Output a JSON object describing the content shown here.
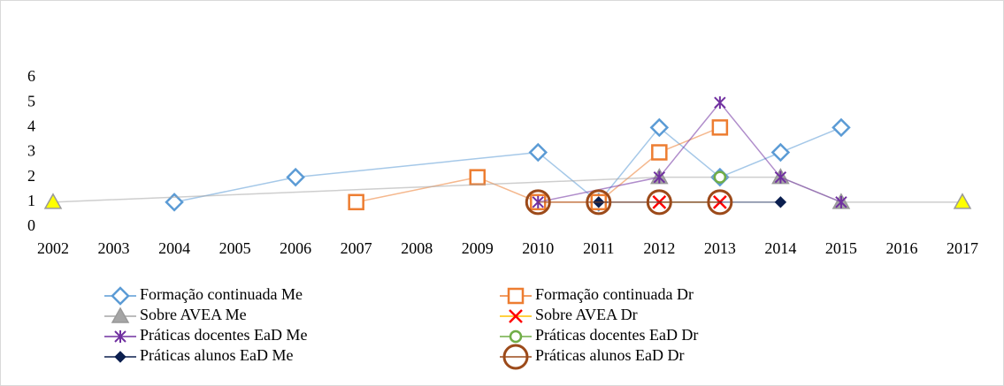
{
  "chart_data": {
    "type": "line",
    "xlim": [
      2002,
      2017
    ],
    "xticks": [
      2002,
      2003,
      2004,
      2005,
      2006,
      2007,
      2008,
      2009,
      2010,
      2011,
      2012,
      2013,
      2014,
      2015,
      2016,
      2017
    ],
    "ylim": [
      0,
      6
    ],
    "yticks": [
      0,
      1,
      2,
      3,
      4,
      5,
      6
    ],
    "grid": false,
    "legend": "bottom",
    "series": [
      {
        "name": "Formação continuada Me",
        "color": "#5b9bd5",
        "marker": "diamond",
        "x": [
          2004,
          2006,
          2010,
          2011,
          2012,
          2013,
          2014,
          2015
        ],
        "values": [
          1,
          2,
          3,
          1,
          4,
          2,
          3,
          4
        ]
      },
      {
        "name": "Formação continuada Dr",
        "color": "#ed7d31",
        "marker": "square",
        "x": [
          2007,
          2009,
          2010,
          2011,
          2012,
          2013
        ],
        "values": [
          1,
          2,
          1,
          1,
          3,
          4
        ]
      },
      {
        "name": "Sobre AVEA Me",
        "color": "#a5a5a5",
        "marker": "triangle",
        "x": [
          2002,
          2012,
          2014,
          2015,
          2017
        ],
        "values": [
          1,
          2,
          2,
          1,
          1
        ],
        "point_colors": [
          "#ffff00",
          "#a5a5a5",
          "#a5a5a5",
          "#a5a5a5",
          "#ffff00"
        ]
      },
      {
        "name": "Sobre AVEA Dr",
        "color": "#ff0000",
        "line_color": "#ffc000",
        "marker": "x",
        "x": [
          2012,
          2013
        ],
        "values": [
          1,
          1
        ]
      },
      {
        "name": "Práticas docentes EaD Me",
        "color": "#7030a0",
        "marker": "star",
        "x": [
          2010,
          2012,
          2013,
          2014,
          2015
        ],
        "values": [
          1,
          2,
          5,
          2,
          1
        ]
      },
      {
        "name": "Práticas docentes EaD Dr",
        "color": "#70ad47",
        "marker": "circle",
        "x": [
          2013
        ],
        "values": [
          2
        ]
      },
      {
        "name": "Práticas alunos EaD Me",
        "color": "#0b1f4f",
        "marker": "filled-diamond",
        "x": [
          2011,
          2014
        ],
        "values": [
          1,
          1
        ]
      },
      {
        "name": "Práticas alunos EaD Dr",
        "color": "#9c4a1a",
        "marker": "big-circle",
        "x": [
          2010,
          2011,
          2012,
          2013
        ],
        "values": [
          1,
          1,
          1,
          1
        ]
      }
    ]
  }
}
